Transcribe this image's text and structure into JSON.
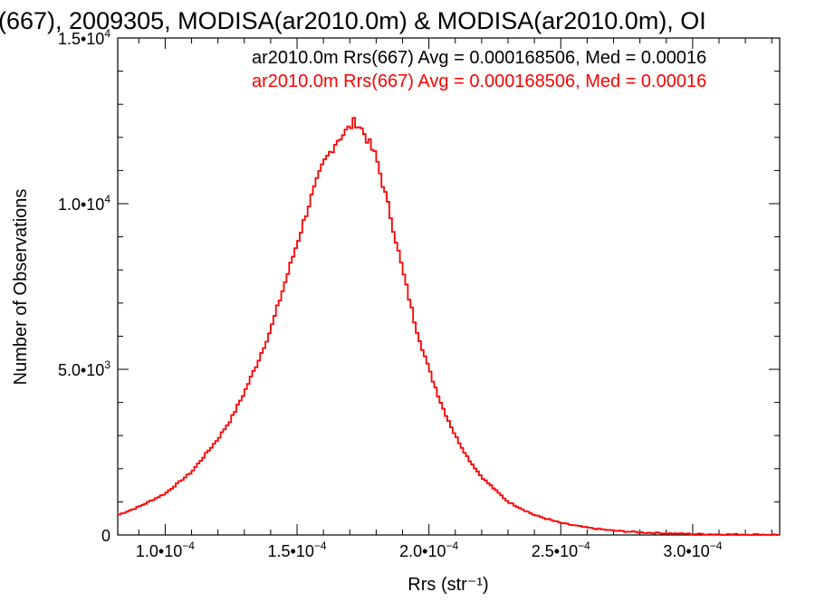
{
  "chart_data": {
    "type": "histogram-step",
    "title": "(667), 2009305, MODISA(ar2010.0m) & MODISA(ar2010.0m), OI",
    "xlabel": "Rrs (str⁻¹)",
    "ylabel": "Number of Observations",
    "xlim": [
      8.2e-05,
      0.000333
    ],
    "ylim": [
      0,
      15000
    ],
    "x_ticks": [
      {
        "value": 0.0001,
        "mantissa": "1.0•",
        "base": "10",
        "exp": "−4"
      },
      {
        "value": 0.00015,
        "mantissa": "1.5•",
        "base": "10",
        "exp": "−4"
      },
      {
        "value": 0.0002,
        "mantissa": "2.0•",
        "base": "10",
        "exp": "−4"
      },
      {
        "value": 0.00025,
        "mantissa": "2.5•",
        "base": "10",
        "exp": "−4"
      },
      {
        "value": 0.0003,
        "mantissa": "3.0•",
        "base": "10",
        "exp": "−4"
      }
    ],
    "y_ticks": [
      {
        "value": 0,
        "mantissa": "0",
        "base": "",
        "exp": ""
      },
      {
        "value": 5000,
        "mantissa": "5.0•",
        "base": "10",
        "exp": "3"
      },
      {
        "value": 10000,
        "mantissa": "1.0•",
        "base": "10",
        "exp": "4"
      },
      {
        "value": 15000,
        "mantissa": "1.5•",
        "base": "10",
        "exp": "4"
      }
    ],
    "legend": [
      {
        "text": "ar2010.0m Rrs(667) Avg = 0.000168506, Med = 0.00016",
        "color": "#000000"
      },
      {
        "text": "ar2010.0m Rrs(667) Avg = 0.000168506, Med = 0.00016",
        "color": "#ff0000"
      }
    ],
    "series": [
      {
        "color": "#ff0000",
        "x": [
          8.2e-05,
          9e-05,
          0.0001,
          0.00011,
          0.00012,
          0.000125,
          0.00013,
          0.000135,
          0.00014,
          0.000145,
          0.00015,
          0.000155,
          0.00016,
          0.000165,
          0.00017,
          0.000172,
          0.000175,
          0.00018,
          0.000185,
          0.00019,
          0.000195,
          0.0002,
          0.000205,
          0.00021,
          0.000215,
          0.00022,
          0.00023,
          0.00024,
          0.00025,
          0.00026,
          0.00027,
          0.00028,
          0.00029,
          0.0003,
          0.00031,
          0.00032,
          0.000333
        ],
        "y": [
          600,
          850,
          1250,
          1900,
          2900,
          3500,
          4300,
          5200,
          6200,
          7500,
          8800,
          10100,
          11200,
          11900,
          12300,
          12500,
          12200,
          11400,
          9800,
          8000,
          6300,
          5000,
          3900,
          3000,
          2300,
          1750,
          1000,
          600,
          360,
          220,
          130,
          80,
          50,
          30,
          20,
          15,
          10
        ]
      }
    ]
  }
}
